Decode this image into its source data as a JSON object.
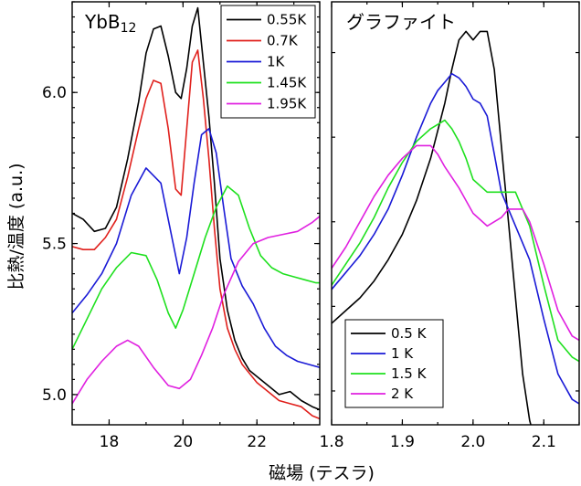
{
  "xlabel": "磁場 (テスラ)",
  "ylabel": "比熱/温度 (a.u.)",
  "chart_data": [
    {
      "type": "line",
      "title": "YbB",
      "title_sub": "12",
      "xlim": [
        17,
        23.7
      ],
      "ylim": [
        4.9,
        6.3
      ],
      "xticks": [
        18,
        20,
        22
      ],
      "yticks": [
        5.0,
        5.5,
        6.0
      ],
      "xtick_labels": [
        "18",
        "20",
        "22"
      ],
      "ytick_labels": [
        "5.0",
        "5.5",
        "6.0"
      ],
      "legend_position": "top-right",
      "series": [
        {
          "name": "0.55K",
          "color": "#000000",
          "x": [
            17.0,
            17.3,
            17.6,
            17.9,
            18.2,
            18.5,
            18.8,
            19.0,
            19.2,
            19.4,
            19.6,
            19.8,
            19.95,
            20.1,
            20.25,
            20.4,
            20.55,
            20.7,
            20.85,
            21.0,
            21.2,
            21.4,
            21.6,
            21.8,
            22.0,
            22.3,
            22.6,
            22.9,
            23.2,
            23.5,
            23.7
          ],
          "y": [
            5.6,
            5.58,
            5.54,
            5.55,
            5.62,
            5.78,
            5.97,
            6.13,
            6.21,
            6.22,
            6.12,
            6.0,
            5.98,
            6.08,
            6.22,
            6.28,
            6.1,
            5.92,
            5.7,
            5.45,
            5.28,
            5.18,
            5.12,
            5.08,
            5.06,
            5.03,
            5.0,
            5.01,
            4.98,
            4.96,
            4.95
          ]
        },
        {
          "name": "0.7K",
          "color": "#e0201c",
          "x": [
            17.0,
            17.3,
            17.6,
            17.9,
            18.2,
            18.5,
            18.8,
            19.0,
            19.2,
            19.4,
            19.6,
            19.8,
            19.95,
            20.1,
            20.25,
            20.4,
            20.55,
            20.7,
            20.85,
            21.0,
            21.2,
            21.4,
            21.6,
            21.8,
            22.0,
            22.3,
            22.6,
            22.9,
            23.2,
            23.5,
            23.7
          ],
          "y": [
            5.49,
            5.48,
            5.48,
            5.52,
            5.58,
            5.72,
            5.88,
            5.98,
            6.04,
            6.03,
            5.88,
            5.68,
            5.66,
            5.88,
            6.1,
            6.14,
            5.98,
            5.78,
            5.55,
            5.35,
            5.22,
            5.15,
            5.1,
            5.07,
            5.04,
            5.01,
            4.98,
            4.97,
            4.96,
            4.93,
            4.92
          ]
        },
        {
          "name": "1K",
          "color": "#1a1ad6",
          "x": [
            17.0,
            17.4,
            17.8,
            18.2,
            18.6,
            19.0,
            19.4,
            19.7,
            19.9,
            20.1,
            20.3,
            20.5,
            20.7,
            20.9,
            21.1,
            21.3,
            21.6,
            21.9,
            22.2,
            22.5,
            22.8,
            23.1,
            23.4,
            23.7
          ],
          "y": [
            5.27,
            5.33,
            5.4,
            5.5,
            5.66,
            5.75,
            5.7,
            5.52,
            5.4,
            5.52,
            5.7,
            5.86,
            5.88,
            5.8,
            5.62,
            5.45,
            5.36,
            5.3,
            5.22,
            5.16,
            5.13,
            5.11,
            5.1,
            5.09
          ]
        },
        {
          "name": "1.45K",
          "color": "#1ee01e",
          "x": [
            17.0,
            17.4,
            17.8,
            18.2,
            18.6,
            19.0,
            19.3,
            19.6,
            19.8,
            20.0,
            20.3,
            20.6,
            20.9,
            21.2,
            21.5,
            21.8,
            22.1,
            22.4,
            22.7,
            23.0,
            23.3,
            23.6,
            23.7
          ],
          "y": [
            5.15,
            5.25,
            5.35,
            5.42,
            5.47,
            5.46,
            5.38,
            5.27,
            5.22,
            5.28,
            5.4,
            5.52,
            5.62,
            5.69,
            5.66,
            5.55,
            5.46,
            5.42,
            5.4,
            5.39,
            5.38,
            5.37,
            5.37
          ]
        },
        {
          "name": "1.95K",
          "color": "#e020e0",
          "x": [
            17.0,
            17.4,
            17.8,
            18.2,
            18.5,
            18.8,
            19.2,
            19.6,
            19.9,
            20.2,
            20.5,
            20.8,
            21.1,
            21.5,
            21.9,
            22.3,
            22.7,
            23.1,
            23.5,
            23.7
          ],
          "y": [
            4.97,
            5.05,
            5.11,
            5.16,
            5.18,
            5.16,
            5.09,
            5.03,
            5.02,
            5.05,
            5.13,
            5.22,
            5.33,
            5.44,
            5.5,
            5.52,
            5.53,
            5.54,
            5.57,
            5.59
          ]
        }
      ]
    },
    {
      "type": "line",
      "title": "グラファイト",
      "xlim": [
        1.8,
        2.15
      ],
      "ylim": [
        0,
        1
      ],
      "xticks": [
        1.8,
        1.9,
        2.0,
        2.1
      ],
      "xtick_labels": [
        "1.8",
        "1.9",
        "2.0",
        "2.1"
      ],
      "legend_position": "bottom-left",
      "series": [
        {
          "name": "0.5 K",
          "color": "#000000",
          "x": [
            1.8,
            1.82,
            1.84,
            1.86,
            1.88,
            1.9,
            1.92,
            1.94,
            1.96,
            1.97,
            1.98,
            1.99,
            2.0,
            2.01,
            2.02,
            2.03,
            2.04,
            2.05,
            2.06,
            2.07,
            2.08,
            2.09
          ],
          "y": [
            0.24,
            0.27,
            0.3,
            0.34,
            0.39,
            0.45,
            0.53,
            0.63,
            0.76,
            0.84,
            0.91,
            0.93,
            0.91,
            0.93,
            0.93,
            0.84,
            0.66,
            0.48,
            0.3,
            0.12,
            0.01,
            -0.05
          ]
        },
        {
          "name": "1 K",
          "color": "#1a1ad6",
          "x": [
            1.8,
            1.82,
            1.84,
            1.86,
            1.88,
            1.9,
            1.92,
            1.94,
            1.95,
            1.96,
            1.97,
            1.98,
            1.99,
            2.0,
            2.01,
            2.02,
            2.03,
            2.04,
            2.06,
            2.08,
            2.1,
            2.12,
            2.14,
            2.15
          ],
          "y": [
            0.32,
            0.36,
            0.4,
            0.45,
            0.51,
            0.59,
            0.68,
            0.76,
            0.79,
            0.81,
            0.83,
            0.82,
            0.8,
            0.77,
            0.76,
            0.73,
            0.64,
            0.55,
            0.47,
            0.39,
            0.25,
            0.12,
            0.06,
            0.05
          ]
        },
        {
          "name": "1.5 K",
          "color": "#1ee01e",
          "x": [
            1.8,
            1.82,
            1.84,
            1.86,
            1.88,
            1.9,
            1.92,
            1.94,
            1.96,
            1.97,
            1.98,
            1.99,
            2.0,
            2.02,
            2.04,
            2.06,
            2.08,
            2.1,
            2.12,
            2.14,
            2.15
          ],
          "y": [
            0.33,
            0.38,
            0.43,
            0.49,
            0.56,
            0.62,
            0.67,
            0.7,
            0.72,
            0.7,
            0.67,
            0.63,
            0.58,
            0.55,
            0.55,
            0.55,
            0.47,
            0.33,
            0.2,
            0.16,
            0.15
          ]
        },
        {
          "name": "2 K",
          "color": "#e020e0",
          "x": [
            1.8,
            1.82,
            1.84,
            1.86,
            1.88,
            1.9,
            1.92,
            1.93,
            1.94,
            1.95,
            1.96,
            1.98,
            2.0,
            2.02,
            2.04,
            2.05,
            2.06,
            2.07,
            2.08,
            2.1,
            2.12,
            2.14,
            2.15
          ],
          "y": [
            0.37,
            0.42,
            0.48,
            0.54,
            0.59,
            0.63,
            0.66,
            0.66,
            0.66,
            0.64,
            0.61,
            0.56,
            0.5,
            0.47,
            0.49,
            0.51,
            0.51,
            0.51,
            0.48,
            0.38,
            0.27,
            0.21,
            0.2
          ]
        }
      ]
    }
  ]
}
